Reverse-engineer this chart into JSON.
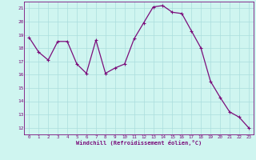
{
  "x": [
    0,
    1,
    2,
    3,
    4,
    5,
    6,
    7,
    8,
    9,
    10,
    11,
    12,
    13,
    14,
    15,
    16,
    17,
    18,
    19,
    20,
    21,
    22,
    23
  ],
  "y": [
    18.8,
    17.7,
    17.1,
    18.5,
    18.5,
    16.8,
    16.1,
    18.6,
    16.1,
    16.5,
    16.8,
    18.7,
    19.9,
    21.1,
    21.2,
    20.7,
    20.6,
    19.3,
    18.0,
    15.5,
    14.3,
    13.2,
    12.8,
    12.0
  ],
  "line_color": "#7b0d7b",
  "marker": "+",
  "bg_color": "#cff5f0",
  "grid_color": "#aadddd",
  "xlabel": "Windchill (Refroidissement éolien,°C)",
  "xlabel_color": "#7b0d7b",
  "tick_color": "#7b0d7b",
  "ylim": [
    11.5,
    21.5
  ],
  "yticks": [
    12,
    13,
    14,
    15,
    16,
    17,
    18,
    19,
    20,
    21
  ],
  "xticks": [
    0,
    1,
    2,
    3,
    4,
    5,
    6,
    7,
    8,
    9,
    10,
    11,
    12,
    13,
    14,
    15,
    16,
    17,
    18,
    19,
    20,
    21,
    22,
    23
  ],
  "spine_color": "#7b0d7b",
  "markersize": 3,
  "linewidth": 0.9
}
